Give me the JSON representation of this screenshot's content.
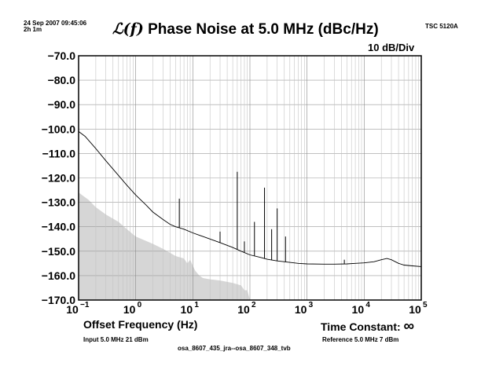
{
  "header": {
    "timestamp": "24 Sep 2007 09:45:06",
    "duration": "2h 1m",
    "instrument": "TSC 5120A",
    "title_symbol": "ℒ(f)",
    "title": "Phase Noise at 5.0 MHz (dBc/Hz)",
    "scale": "10 dB/Div"
  },
  "footer": {
    "input": "Input 5.0 MHz 21 dBm",
    "reference": "Reference 5.0 MHz 7 dBm",
    "file": "osa_8607_435_jra--osa_8607_348_tvb",
    "time_constant_label": "Time Constant:",
    "time_constant_value": "∞"
  },
  "chart_data": {
    "type": "line",
    "xlabel": "Offset Frequency (Hz)",
    "ylabel": "",
    "x_scale": "log",
    "xlim": [
      0.1,
      100000
    ],
    "ylim": [
      -170,
      -70
    ],
    "grid": true,
    "y_ticks": [
      "−70.0",
      "−80.0",
      "−90.0",
      "−100.0",
      "−110.0",
      "−120.0",
      "−130.0",
      "−140.0",
      "−150.0",
      "−160.0",
      "−170.0"
    ],
    "x_ticks": [
      {
        "base": "10",
        "exp": "−1"
      },
      {
        "base": "10",
        "exp": "0"
      },
      {
        "base": "10",
        "exp": "1"
      },
      {
        "base": "10",
        "exp": "2"
      },
      {
        "base": "10",
        "exp": "3"
      },
      {
        "base": "10",
        "exp": "4"
      },
      {
        "base": "10",
        "exp": "5"
      }
    ],
    "series": [
      {
        "color": "#000000",
        "x": [
          0.1,
          0.13,
          0.2,
          0.3,
          0.5,
          0.7,
          1,
          1.5,
          2,
          3,
          4,
          5,
          6,
          7,
          10,
          15,
          20,
          30,
          50,
          70,
          100,
          150,
          200,
          300,
          500,
          700,
          1000,
          2000,
          3000,
          5000,
          7000,
          10000,
          15000,
          20000,
          25000,
          30000,
          40000,
          50000,
          70000,
          100000
        ],
        "y": [
          -101,
          -103,
          -108,
          -113,
          -119,
          -123,
          -127,
          -131,
          -134,
          -137,
          -139,
          -140,
          -140.5,
          -141,
          -142.5,
          -144,
          -145,
          -146.5,
          -148.5,
          -150,
          -151.5,
          -152.5,
          -153.3,
          -154,
          -154.6,
          -155,
          -155.2,
          -155.3,
          -155.3,
          -155.2,
          -155,
          -154.8,
          -154.3,
          -153.5,
          -153,
          -153.5,
          -155,
          -155.7,
          -156,
          -156.3
        ]
      }
    ],
    "spurs": [
      {
        "x": 5.8,
        "y": -128.5
      },
      {
        "x": 60,
        "y": -117.5
      },
      {
        "x": 120,
        "y": -138
      },
      {
        "x": 180,
        "y": -124
      },
      {
        "x": 240,
        "y": -141
      },
      {
        "x": 300,
        "y": -132.5
      },
      {
        "x": 420,
        "y": -144
      },
      {
        "x": 30,
        "y": -142
      },
      {
        "x": 80,
        "y": -146
      },
      {
        "x": 4500,
        "y": -153.5
      }
    ],
    "floor": {
      "color": "#d6d6d6",
      "x": [
        0.1,
        0.15,
        0.2,
        0.3,
        0.5,
        0.7,
        1,
        2,
        3,
        5,
        7,
        8,
        9,
        10,
        11,
        13,
        15,
        20,
        30,
        50,
        70,
        80,
        90,
        100
      ],
      "y": [
        -126,
        -129,
        -132,
        -135,
        -138,
        -141,
        -144,
        -147,
        -149,
        -152,
        -153,
        -155,
        -153.5,
        -156,
        -158,
        -160,
        -161,
        -161.5,
        -162,
        -163,
        -164,
        -166,
        -166,
        -170
      ]
    }
  }
}
